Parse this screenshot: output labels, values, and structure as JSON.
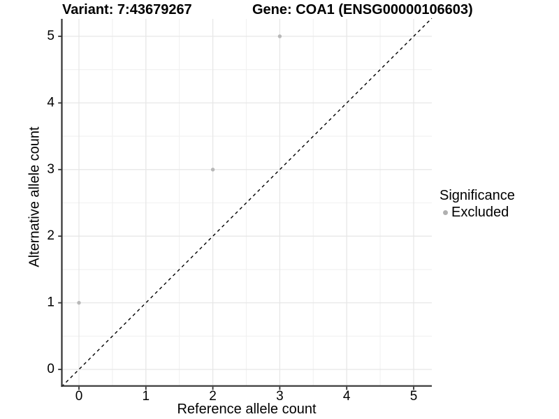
{
  "title_left": "Variant: 7:43679267",
  "title_right": "Gene: COA1 (ENSG00000106603)",
  "x_axis": {
    "label": "Reference allele count",
    "tick_labels": [
      "0",
      "1",
      "2",
      "3",
      "4",
      "5"
    ]
  },
  "y_axis": {
    "label": "Alternative allele count",
    "tick_labels": [
      "0",
      "1",
      "2",
      "3",
      "4",
      "5"
    ]
  },
  "legend": {
    "title": "Significance",
    "items": [
      {
        "label": "Excluded",
        "color": "#b0b0b0"
      }
    ]
  },
  "chart_data": {
    "type": "scatter",
    "title": "Variant: 7:43679267 / Gene: COA1 (ENSG00000106603)",
    "xlabel": "Reference allele count",
    "ylabel": "Alternative allele count",
    "xlim": [
      -0.26,
      5.27
    ],
    "ylim": [
      -0.26,
      5.27
    ],
    "x_ticks": [
      0,
      1,
      2,
      3,
      4,
      5
    ],
    "y_ticks": [
      0,
      1,
      2,
      3,
      4,
      5
    ],
    "grid": {
      "major_x": [
        0,
        1,
        2,
        3,
        4,
        5
      ],
      "minor_x": [
        0.5,
        1.5,
        2.5,
        3.5,
        4.5
      ],
      "major_y": [
        0,
        1,
        2,
        3,
        4,
        5
      ],
      "minor_y": [
        0.5,
        1.5,
        2.5,
        3.5,
        4.5
      ]
    },
    "identity_line": {
      "equation": "y = x",
      "style": "dashed",
      "from": [
        0,
        0
      ],
      "to": [
        5,
        5
      ]
    },
    "series": [
      {
        "name": "Excluded",
        "color": "#b8b8b8",
        "points": [
          [
            0,
            1
          ],
          [
            2,
            3
          ],
          [
            3,
            5
          ]
        ]
      }
    ],
    "legend_position": "right",
    "legend_title": "Significance"
  },
  "colors": {
    "background": "#ffffff",
    "point": "#b8b8b8",
    "legend_point": "#b0b0b0",
    "axis_line": "#333333",
    "tick_mark": "#333333",
    "grid_major": "#e7e7e7",
    "grid_minor": "#f1f1f1",
    "dashed_line": "#000000",
    "text": "#000000"
  }
}
